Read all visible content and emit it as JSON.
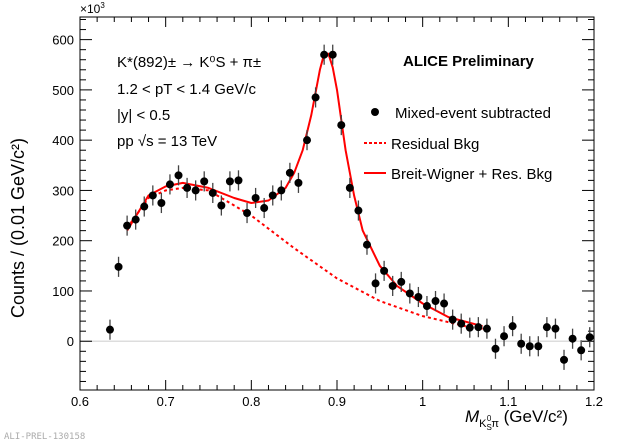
{
  "chart_data": {
    "type": "scatter",
    "title": "ALICE Preliminary",
    "exponent_label": "×10",
    "exponent_power": "3",
    "ylabel": "Counts / (0.01 GeV/c²)",
    "xlabel_main": "M",
    "xlabel_sub": "K",
    "xlabel_subsub": "S",
    "xlabel_sup": "0",
    "xlabel_pi": "π",
    "xlabel_unit": " (GeV/c²)",
    "xlim": [
      0.6,
      1.2
    ],
    "ylim": [
      -97,
      645
    ],
    "xticks": [
      0.6,
      0.7,
      0.8,
      0.9,
      1.0,
      1.1,
      1.2
    ],
    "xtick_labels": [
      "0.6",
      "0.7",
      "0.8",
      "0.9",
      "1",
      "1.1",
      "1.2"
    ],
    "yticks": [
      0,
      100,
      200,
      300,
      400,
      500,
      600
    ],
    "ytick_labels": [
      "0",
      "100",
      "200",
      "300",
      "400",
      "500",
      "600"
    ],
    "annotations": {
      "decay": "K*(892)± → K⁰S + π±",
      "pt": "1.2 < pT < 1.4 GeV/c",
      "rapidity": "|y| < 0.5",
      "energy": "pp √s = 13 TeV"
    },
    "legend": [
      "Mixed-event subtracted",
      "Residual Bkg",
      "Breit-Wigner + Res. Bkg"
    ],
    "colors": {
      "data": "#000000",
      "fit": "#ff0000",
      "bkg": "#ff0000"
    },
    "series": [
      {
        "name": "Mixed-event subtracted",
        "x": [
          0.635,
          0.645,
          0.655,
          0.665,
          0.675,
          0.685,
          0.695,
          0.705,
          0.715,
          0.725,
          0.735,
          0.745,
          0.755,
          0.765,
          0.775,
          0.785,
          0.795,
          0.805,
          0.815,
          0.825,
          0.835,
          0.845,
          0.855,
          0.865,
          0.875,
          0.885,
          0.895,
          0.905,
          0.915,
          0.925,
          0.935,
          0.945,
          0.955,
          0.965,
          0.975,
          0.985,
          0.995,
          1.005,
          1.015,
          1.025,
          1.035,
          1.045,
          1.055,
          1.065,
          1.075,
          1.085,
          1.095,
          1.105,
          1.115,
          1.125,
          1.135,
          1.145,
          1.155,
          1.165,
          1.175,
          1.185,
          1.195
        ],
        "y": [
          23,
          148,
          230,
          242,
          268,
          290,
          275,
          312,
          330,
          305,
          300,
          318,
          295,
          270,
          318,
          320,
          255,
          285,
          265,
          290,
          300,
          335,
          315,
          400,
          485,
          570,
          570,
          430,
          305,
          260,
          192,
          115,
          140,
          110,
          118,
          95,
          88,
          70,
          80,
          75,
          43,
          35,
          27,
          28,
          25,
          -15,
          10,
          30,
          -5,
          -10,
          -10,
          28,
          25,
          -37,
          5,
          -18,
          8
        ],
        "err": 20
      },
      {
        "name": "Residual Bkg",
        "x": [
          0.655,
          0.68,
          0.7,
          0.72,
          0.75,
          0.78,
          0.8,
          0.85,
          0.9,
          0.95,
          1.0,
          1.05,
          1.07
        ],
        "y": [
          225,
          285,
          300,
          305,
          300,
          270,
          250,
          185,
          125,
          80,
          50,
          30,
          25
        ]
      },
      {
        "name": "Breit-Wigner + Res. Bkg",
        "x": [
          0.655,
          0.68,
          0.7,
          0.72,
          0.75,
          0.78,
          0.8,
          0.82,
          0.84,
          0.85,
          0.86,
          0.87,
          0.88,
          0.885,
          0.89,
          0.895,
          0.9,
          0.91,
          0.92,
          0.93,
          0.95,
          0.97,
          1.0,
          1.03,
          1.07
        ],
        "y": [
          220,
          290,
          308,
          315,
          305,
          285,
          275,
          280,
          305,
          335,
          380,
          450,
          540,
          572,
          572,
          545,
          500,
          380,
          290,
          220,
          150,
          110,
          75,
          48,
          30
        ]
      }
    ]
  },
  "watermark": "ALI-PREL-130158"
}
